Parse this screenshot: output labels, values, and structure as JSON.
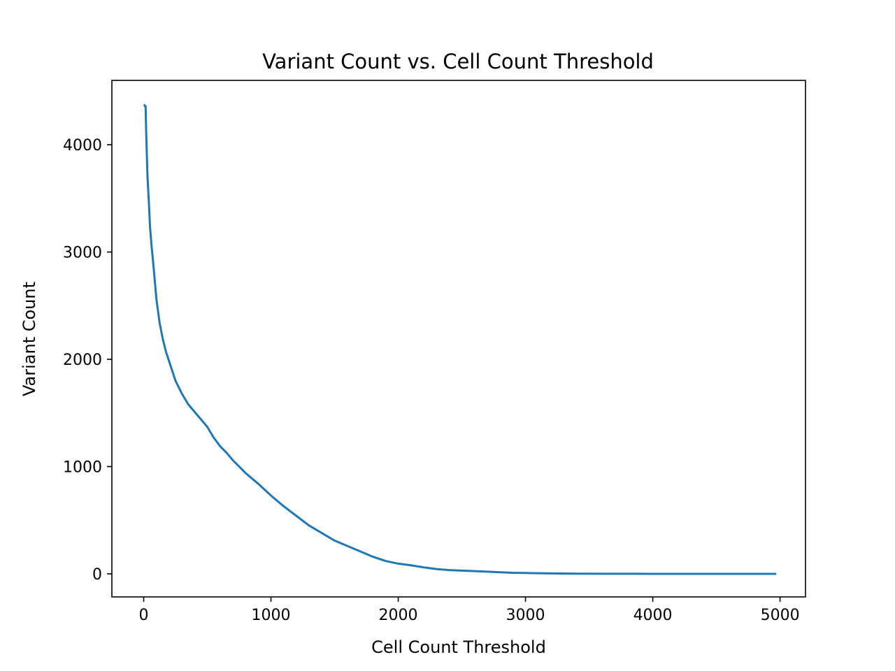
{
  "chart_data": {
    "type": "line",
    "title": "Variant Count vs. Cell Count Threshold",
    "xlabel": "Cell Count Threshold",
    "ylabel": "Variant Count",
    "xlim": [
      -250,
      5200
    ],
    "ylim": [
      -215,
      4600
    ],
    "xticks": [
      0,
      1000,
      2000,
      3000,
      4000,
      5000
    ],
    "yticks": [
      0,
      1000,
      2000,
      3000,
      4000
    ],
    "grid": false,
    "legend": "none",
    "series": [
      {
        "color": "#1f77b4",
        "x": [
          0,
          5,
          10,
          15,
          20,
          30,
          40,
          50,
          60,
          80,
          100,
          125,
          150,
          175,
          200,
          250,
          300,
          350,
          400,
          450,
          500,
          550,
          600,
          650,
          700,
          800,
          900,
          1000,
          1100,
          1200,
          1300,
          1400,
          1500,
          1600,
          1700,
          1800,
          1900,
          2000,
          2100,
          2200,
          2300,
          2400,
          2500,
          2600,
          2700,
          2800,
          2900,
          3000,
          3200,
          3400,
          3600,
          3800,
          4000,
          4200,
          4400,
          4600,
          4800,
          4970
        ],
        "y": [
          4370,
          4370,
          4360,
          4360,
          4100,
          3700,
          3480,
          3230,
          3080,
          2830,
          2560,
          2340,
          2190,
          2070,
          1980,
          1800,
          1680,
          1580,
          1510,
          1440,
          1370,
          1270,
          1190,
          1130,
          1060,
          940,
          840,
          730,
          630,
          540,
          450,
          380,
          310,
          260,
          210,
          160,
          120,
          95,
          80,
          60,
          45,
          35,
          30,
          25,
          20,
          15,
          10,
          8,
          4,
          2,
          1,
          1,
          0,
          0,
          0,
          0,
          0,
          0
        ]
      }
    ]
  }
}
